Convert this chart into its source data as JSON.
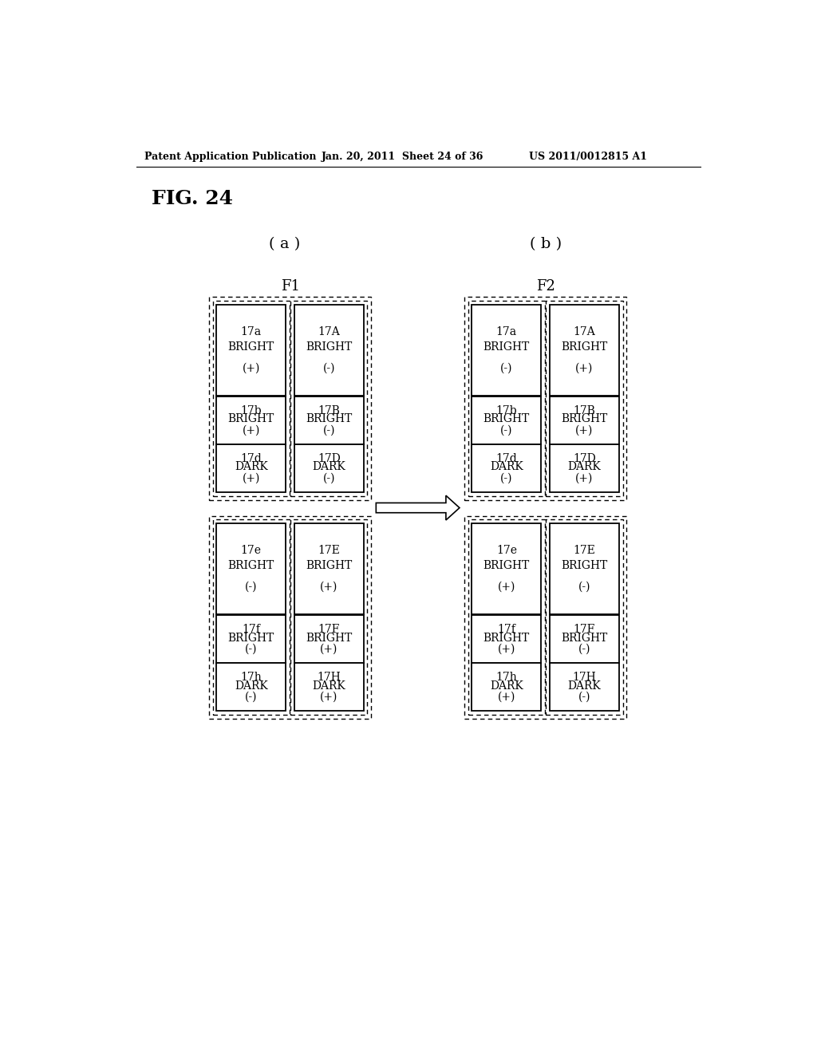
{
  "header_left": "Patent Application Publication",
  "header_mid": "Jan. 20, 2011  Sheet 24 of 36",
  "header_right": "US 2011/0012815 A1",
  "fig_label": "FIG. 24",
  "sub_a": "( a )",
  "sub_b": "( b )",
  "f1_label": "F1",
  "f2_label": "F2",
  "background": "#ffffff",
  "panels": {
    "F1": {
      "group1": [
        {
          "label": "17a",
          "type": "BRIGHT",
          "sign": "(+)"
        },
        {
          "label": "17A",
          "type": "BRIGHT",
          "sign": "(-)"
        }
      ],
      "group1_small": [
        {
          "label": "17b",
          "type": "BRIGHT",
          "sign": "(+)"
        },
        {
          "label": "17B",
          "type": "BRIGHT",
          "sign": "(-)"
        },
        {
          "label": "17d",
          "type": "DARK",
          "sign": "(+)"
        },
        {
          "label": "17D",
          "type": "DARK",
          "sign": "(-)"
        }
      ],
      "group2": [
        {
          "label": "17e",
          "type": "BRIGHT",
          "sign": "(-)"
        },
        {
          "label": "17E",
          "type": "BRIGHT",
          "sign": "(+)"
        }
      ],
      "group2_small": [
        {
          "label": "17f",
          "type": "BRIGHT",
          "sign": "(-)"
        },
        {
          "label": "17F",
          "type": "BRIGHT",
          "sign": "(+)"
        },
        {
          "label": "17h",
          "type": "DARK",
          "sign": "(-)"
        },
        {
          "label": "17H",
          "type": "DARK",
          "sign": "(+)"
        }
      ]
    },
    "F2": {
      "group1": [
        {
          "label": "17a",
          "type": "BRIGHT",
          "sign": "(-)"
        },
        {
          "label": "17A",
          "type": "BRIGHT",
          "sign": "(+)"
        }
      ],
      "group1_small": [
        {
          "label": "17b",
          "type": "BRIGHT",
          "sign": "(-)"
        },
        {
          "label": "17B",
          "type": "BRIGHT",
          "sign": "(+)"
        },
        {
          "label": "17d",
          "type": "DARK",
          "sign": "(-)"
        },
        {
          "label": "17D",
          "type": "DARK",
          "sign": "(+)"
        }
      ],
      "group2": [
        {
          "label": "17e",
          "type": "BRIGHT",
          "sign": "(+)"
        },
        {
          "label": "17E",
          "type": "BRIGHT",
          "sign": "(-)"
        }
      ],
      "group2_small": [
        {
          "label": "17f",
          "type": "BRIGHT",
          "sign": "(+)"
        },
        {
          "label": "17F",
          "type": "BRIGHT",
          "sign": "(-)"
        },
        {
          "label": "17h",
          "type": "DARK",
          "sign": "(+)"
        },
        {
          "label": "17H",
          "type": "DARK",
          "sign": "(-)"
        }
      ]
    }
  }
}
